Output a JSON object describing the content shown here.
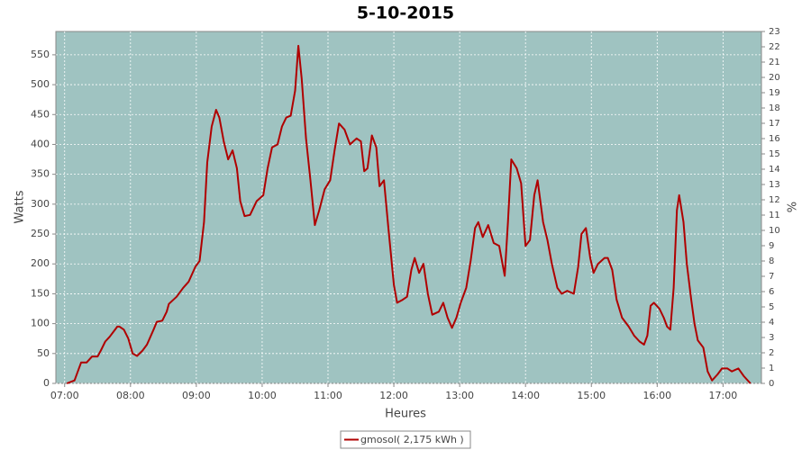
{
  "chart_data": {
    "type": "line",
    "title": "5-10-2015",
    "x_label": "Heures",
    "y_label": "Watts",
    "y2_label": "%",
    "x": [
      "07:02",
      "07:09",
      "07:15",
      "07:20",
      "07:25",
      "07:30",
      "07:33",
      "07:37",
      "07:41",
      "07:48",
      "07:50",
      "07:54",
      "07:58",
      "08:02",
      "08:06",
      "08:11",
      "08:15",
      "08:21",
      "08:24",
      "08:29",
      "08:33",
      "08:35",
      "08:42",
      "08:48",
      "08:53",
      "08:59",
      "09:03",
      "09:07",
      "09:10",
      "09:14",
      "09:18",
      "09:21",
      "09:25",
      "09:29",
      "09:33",
      "09:37",
      "09:40",
      "09:44",
      "09:49",
      "09:55",
      "10:01",
      "10:05",
      "10:09",
      "10:14",
      "10:18",
      "10:22",
      "10:26",
      "10:30",
      "10:33",
      "10:36",
      "10:40",
      "10:44",
      "10:48",
      "10:52",
      "10:57",
      "11:02",
      "11:06",
      "11:10",
      "11:15",
      "11:20",
      "11:26",
      "11:30",
      "11:33",
      "11:36",
      "11:40",
      "11:44",
      "11:47",
      "11:51",
      "11:55",
      "12:00",
      "12:03",
      "12:08",
      "12:12",
      "12:16",
      "12:19",
      "12:23",
      "12:27",
      "12:31",
      "12:35",
      "12:41",
      "12:45",
      "12:49",
      "12:53",
      "12:57",
      "13:01",
      "13:06",
      "13:10",
      "13:14",
      "13:17",
      "13:21",
      "13:26",
      "13:31",
      "13:36",
      "13:41",
      "13:44",
      "13:47",
      "13:52",
      "13:56",
      "14:00",
      "14:04",
      "14:08",
      "14:11",
      "14:16",
      "14:20",
      "14:24",
      "14:29",
      "14:33",
      "14:38",
      "14:44",
      "14:48",
      "14:51",
      "14:55",
      "14:59",
      "15:02",
      "15:06",
      "15:12",
      "15:15",
      "15:19",
      "15:23",
      "15:28",
      "15:34",
      "15:39",
      "15:44",
      "15:48",
      "15:51",
      "15:54",
      "15:57",
      "16:02",
      "16:06",
      "16:09",
      "16:12",
      "16:15",
      "16:18",
      "16:20",
      "16:24",
      "16:27",
      "16:31",
      "16:34",
      "16:37",
      "16:42",
      "16:46",
      "16:50",
      "16:55",
      "16:59",
      "17:04",
      "17:08",
      "17:14",
      "17:19",
      "17:25"
    ],
    "series": [
      {
        "name": "gmosol( 2,175 kWh )",
        "color": "#b00000",
        "axis": "y",
        "values": [
          0,
          5,
          35,
          35,
          45,
          45,
          55,
          70,
          78,
          95,
          95,
          90,
          75,
          50,
          46,
          55,
          65,
          90,
          103,
          105,
          120,
          133,
          145,
          160,
          170,
          195,
          205,
          270,
          370,
          430,
          458,
          445,
          405,
          375,
          390,
          360,
          305,
          280,
          282,
          305,
          315,
          360,
          395,
          400,
          430,
          445,
          448,
          490,
          565,
          510,
          410,
          340,
          265,
          290,
          325,
          340,
          390,
          435,
          425,
          400,
          410,
          405,
          355,
          360,
          415,
          395,
          330,
          340,
          260,
          165,
          135,
          140,
          145,
          190,
          210,
          185,
          200,
          150,
          115,
          120,
          135,
          110,
          93,
          110,
          135,
          160,
          205,
          260,
          270,
          245,
          265,
          235,
          230,
          180,
          270,
          375,
          360,
          335,
          230,
          240,
          315,
          340,
          270,
          240,
          200,
          160,
          150,
          155,
          150,
          195,
          250,
          260,
          210,
          185,
          200,
          210,
          210,
          190,
          140,
          110,
          95,
          80,
          70,
          65,
          80,
          130,
          135,
          125,
          110,
          95,
          90,
          160,
          290,
          315,
          270,
          200,
          140,
          100,
          72,
          60,
          20,
          5,
          15,
          25,
          25,
          20,
          25,
          12,
          0
        ]
      }
    ],
    "xlim": [
      "06:52",
      "17:35"
    ],
    "xticks": [
      "07:00",
      "08:00",
      "09:00",
      "10:00",
      "11:00",
      "12:00",
      "13:00",
      "14:00",
      "15:00",
      "16:00",
      "17:00"
    ],
    "ylim": [
      0,
      589
    ],
    "yticks": [
      0,
      50,
      100,
      150,
      200,
      250,
      300,
      350,
      400,
      450,
      500,
      550
    ],
    "y2lim": [
      0,
      23
    ],
    "y2ticks": [
      0,
      1,
      2,
      3,
      4,
      5,
      6,
      7,
      8,
      9,
      10,
      11,
      12,
      13,
      14,
      15,
      16,
      17,
      18,
      19,
      20,
      21,
      22,
      23
    ],
    "grid": true,
    "plot_background": "#9fc3c1",
    "legend": "bottom"
  }
}
